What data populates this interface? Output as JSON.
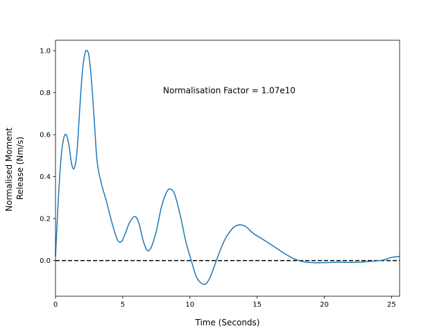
{
  "chart_data": {
    "type": "line",
    "title": "",
    "xlabel": "Time (Seconds)",
    "ylabel_lines": [
      "Normalised Moment",
      "Release (Nm/s)"
    ],
    "xlim": [
      0,
      25.6
    ],
    "ylim": [
      -0.17,
      1.05
    ],
    "xticks": [
      0,
      5,
      10,
      15,
      20,
      25
    ],
    "yticks": [
      0.0,
      0.2,
      0.4,
      0.6,
      0.8,
      1.0
    ],
    "ytick_labels": [
      "0.0",
      "0.2",
      "0.4",
      "0.6",
      "0.8",
      "1.0"
    ],
    "grid": false,
    "line_color": "#1f77b4",
    "reference_line": {
      "y": 0.0,
      "style": "dashed",
      "color": "#000000"
    },
    "annotation": {
      "text": "Normalisation Factor = 1.07e10",
      "x": 8.0,
      "y": 0.81
    },
    "series": [
      {
        "x": [
          0.0,
          0.2,
          0.4,
          0.6,
          0.8,
          1.0,
          1.2,
          1.4,
          1.6,
          1.8,
          2.0,
          2.2,
          2.35,
          2.5,
          2.7,
          2.9,
          3.1,
          3.4,
          3.8,
          4.2,
          4.6,
          4.9,
          5.2,
          5.5,
          5.9,
          6.2,
          6.5,
          6.8,
          7.1,
          7.5,
          7.9,
          8.3,
          8.6,
          8.9,
          9.3,
          9.7,
          10.1,
          10.5,
          10.9,
          11.2,
          11.5,
          11.8,
          12.2,
          12.6,
          13.0,
          13.4,
          13.8,
          14.2,
          14.7,
          15.2,
          15.7,
          16.3,
          17.0,
          17.7,
          18.4,
          19.2,
          20.0,
          21.0,
          22.0,
          23.0,
          23.8,
          24.4,
          25.0,
          25.6
        ],
        "y": [
          0.02,
          0.28,
          0.48,
          0.58,
          0.6,
          0.55,
          0.46,
          0.44,
          0.52,
          0.72,
          0.9,
          0.99,
          1.0,
          0.97,
          0.84,
          0.65,
          0.47,
          0.37,
          0.28,
          0.18,
          0.1,
          0.09,
          0.13,
          0.18,
          0.21,
          0.18,
          0.1,
          0.05,
          0.06,
          0.14,
          0.26,
          0.33,
          0.34,
          0.31,
          0.21,
          0.09,
          0.0,
          -0.08,
          -0.11,
          -0.11,
          -0.08,
          -0.03,
          0.04,
          0.1,
          0.14,
          0.165,
          0.17,
          0.16,
          0.13,
          0.11,
          0.09,
          0.065,
          0.035,
          0.01,
          -0.005,
          -0.01,
          -0.01,
          -0.008,
          -0.009,
          -0.006,
          -0.002,
          0.003,
          0.015,
          0.02
        ]
      }
    ]
  }
}
